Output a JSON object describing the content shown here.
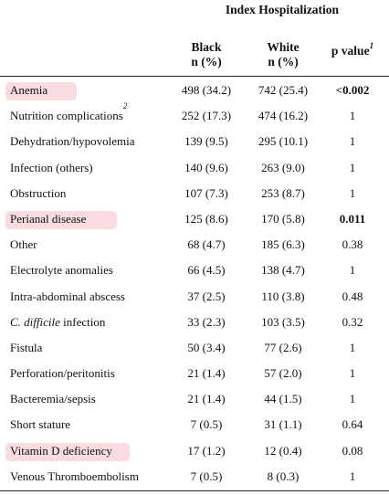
{
  "header": {
    "group_title": "Index Hospitalization",
    "col_black_line1": "Black",
    "col_black_line2": "n (%)",
    "col_white_line1": "White",
    "col_white_line2": "n (%)",
    "col_p": "p value",
    "col_p_footnote": "1"
  },
  "rows": [
    {
      "label": "Anemia",
      "black": "498 (34.2)",
      "white": "742 (25.4)",
      "p": "<0.002",
      "p_bold": true,
      "highlight": true
    },
    {
      "label": "Nutrition complications",
      "footnote": "2",
      "black": "252 (17.3)",
      "white": "474 (16.2)",
      "p": "1"
    },
    {
      "label": "Dehydration/hypovolemia",
      "black": "139 (9.5)",
      "white": "295 (10.1)",
      "p": "1"
    },
    {
      "label": "Infection (others)",
      "black": "140 (9.6)",
      "white": "263 (9.0)",
      "p": "1"
    },
    {
      "label": "Obstruction",
      "black": "107 (7.3)",
      "white": "253 (8.7)",
      "p": "1"
    },
    {
      "label": "Perianal disease",
      "black": "125 (8.6)",
      "white": "170 (5.8)",
      "p": "0.011",
      "p_bold": true,
      "highlight": true
    },
    {
      "label": "Other",
      "black": "68 (4.7)",
      "white": "185 (6.3)",
      "p": "0.38"
    },
    {
      "label": "Electrolyte anomalies",
      "black": "66 (4.5)",
      "white": "138 (4.7)",
      "p": "1"
    },
    {
      "label": "Intra-abdominal abscess",
      "black": "37 (2.5)",
      "white": "110 (3.8)",
      "p": "0.48"
    },
    {
      "label_italic": "C. difficile",
      "label": " infection",
      "black": "33 (2.3)",
      "white": "103 (3.5)",
      "p": "0.32"
    },
    {
      "label": "Fistula",
      "black": "50 (3.4)",
      "white": "77 (2.6)",
      "p": "1"
    },
    {
      "label": "Perforation/peritonitis",
      "black": "21 (1.4)",
      "white": "57 (2.0)",
      "p": "1"
    },
    {
      "label": "Bacteremia/sepsis",
      "black": "21 (1.4)",
      "white": "44 (1.5)",
      "p": "1"
    },
    {
      "label": "Short stature",
      "black": "7 (0.5)",
      "white": "31 (1.1)",
      "p": "0.64"
    },
    {
      "label": "Vitamin D deficiency",
      "black": "17 (1.2)",
      "white": "12 (0.4)",
      "p": "0.08",
      "highlight": true
    },
    {
      "label": "Venous Thromboembolism",
      "black": "7 (0.5)",
      "white": "8 (0.3)",
      "p": "1"
    }
  ],
  "colors": {
    "highlight": "#f9dcdf",
    "text": "#111111",
    "rule": "#222222"
  }
}
